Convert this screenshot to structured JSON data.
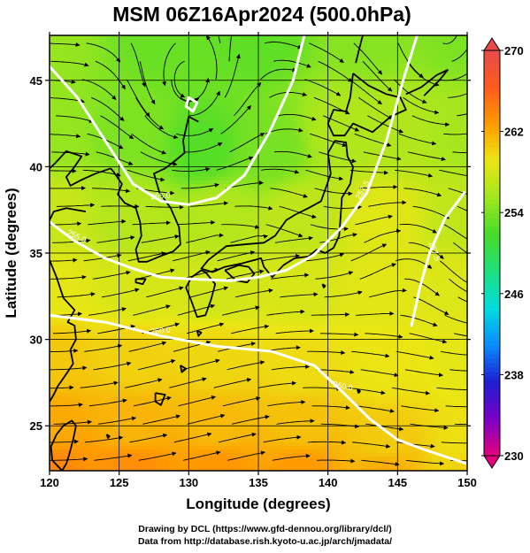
{
  "title": "MSM 06Z16Apr2024 (500.0hPa)",
  "xlabel": "Longitude (degrees)",
  "ylabel": "Latitude  (degrees)",
  "credits": {
    "line1": "Drawing by DCL (https://www.gfd-dennou.org/library/dcl/)",
    "line2": "Data from http://database.rish.kyoto-u.ac.jp/arch/jmadata/"
  },
  "chart_data": {
    "type": "heatmap",
    "variable": "temperature (K) with wind streamlines",
    "xlim": [
      120,
      150
    ],
    "ylim": [
      22.4,
      47.6
    ],
    "x_ticks": [
      "120",
      "125",
      "130",
      "135",
      "140",
      "145",
      "150"
    ],
    "y_ticks": [
      "25",
      "30",
      "35",
      "40",
      "45"
    ],
    "grid": true,
    "colorbar": {
      "range": [
        230,
        270
      ],
      "tick_labels": [
        "270",
        "262",
        "254",
        "246",
        "238",
        "230"
      ],
      "colors": [
        "#e6007e",
        "#7a00c8",
        "#1e1ed2",
        "#0a8cff",
        "#00dcdc",
        "#1ee17d",
        "#46dc28",
        "#a0e61e",
        "#ebe614",
        "#ff9b00",
        "#ff5a1e",
        "#e64b4b"
      ]
    },
    "contour_labels": [
      "255.0",
      "255.0",
      "257.5",
      "257.5",
      "260.0",
      "260.0"
    ],
    "contours": [
      {
        "value": 255.0,
        "points": [
          [
            120.0,
            45.8
          ],
          [
            122.0,
            44.0
          ],
          [
            124.0,
            41.5
          ],
          [
            126.0,
            39.0
          ],
          [
            128.0,
            38.0
          ],
          [
            130.0,
            37.8
          ],
          [
            132.0,
            38.2
          ],
          [
            134.0,
            39.5
          ],
          [
            135.8,
            42.0
          ],
          [
            137.5,
            45.0
          ],
          [
            138.3,
            47.6
          ]
        ]
      },
      {
        "value": 255.0,
        "points": [
          [
            130.0,
            44.0
          ],
          [
            129.8,
            43.5
          ],
          [
            130.3,
            43.2
          ],
          [
            130.6,
            43.7
          ],
          [
            130.0,
            44.0
          ]
        ]
      },
      {
        "value": 257.5,
        "points": [
          [
            120.0,
            36.8
          ],
          [
            121.8,
            35.7
          ],
          [
            124.0,
            34.7
          ],
          [
            126.0,
            34.1
          ],
          [
            128.0,
            33.6
          ],
          [
            130.0,
            33.5
          ],
          [
            133.0,
            33.4
          ],
          [
            135.0,
            33.6
          ],
          [
            137.0,
            34.0
          ],
          [
            139.0,
            34.9
          ],
          [
            141.0,
            36.5
          ],
          [
            142.8,
            38.5
          ],
          [
            144.2,
            41.5
          ],
          [
            145.4,
            45.0
          ],
          [
            146.4,
            47.6
          ]
        ]
      },
      {
        "value": 257.5,
        "points": [
          [
            149.8,
            38.5
          ],
          [
            148.4,
            37.0
          ],
          [
            147.3,
            35.0
          ],
          [
            146.6,
            33.0
          ],
          [
            146.0,
            30.8
          ]
        ]
      },
      {
        "value": 260.0,
        "points": [
          [
            120.0,
            31.4
          ],
          [
            124.0,
            31.0
          ],
          [
            128.0,
            30.2
          ],
          [
            132.0,
            29.6
          ],
          [
            136.0,
            29.3
          ],
          [
            139.0,
            28.5
          ],
          [
            141.0,
            27.0
          ],
          [
            143.0,
            25.4
          ],
          [
            145.0,
            24.2
          ],
          [
            147.0,
            23.6
          ],
          [
            150.0,
            22.8
          ]
        ]
      }
    ],
    "temperature_nodes": [
      {
        "x": 120,
        "y": 47.6,
        "v": 255.0
      },
      {
        "x": 128,
        "y": 47.6,
        "v": 253.2
      },
      {
        "x": 135,
        "y": 47.6,
        "v": 252.8
      },
      {
        "x": 143,
        "y": 47.6,
        "v": 254.4
      },
      {
        "x": 150,
        "y": 47.6,
        "v": 254.0
      },
      {
        "x": 120,
        "y": 42.0,
        "v": 255.0
      },
      {
        "x": 126,
        "y": 42.0,
        "v": 254.0
      },
      {
        "x": 131,
        "y": 41.0,
        "v": 252.4
      },
      {
        "x": 136,
        "y": 41.0,
        "v": 253.8
      },
      {
        "x": 141,
        "y": 42.0,
        "v": 256.2
      },
      {
        "x": 145,
        "y": 42.0,
        "v": 256.3
      },
      {
        "x": 150,
        "y": 42.0,
        "v": 255.8
      },
      {
        "x": 120,
        "y": 37.0,
        "v": 257.4
      },
      {
        "x": 126,
        "y": 37.0,
        "v": 256.4
      },
      {
        "x": 132,
        "y": 37.0,
        "v": 256.4
      },
      {
        "x": 138,
        "y": 37.0,
        "v": 256.9
      },
      {
        "x": 144,
        "y": 37.0,
        "v": 258.6
      },
      {
        "x": 150,
        "y": 37.0,
        "v": 257.0
      },
      {
        "x": 120,
        "y": 33.0,
        "v": 258.8
      },
      {
        "x": 126,
        "y": 33.0,
        "v": 258.1
      },
      {
        "x": 132,
        "y": 33.0,
        "v": 257.8
      },
      {
        "x": 138,
        "y": 33.0,
        "v": 258.1
      },
      {
        "x": 144,
        "y": 33.0,
        "v": 258.6
      },
      {
        "x": 150,
        "y": 33.0,
        "v": 258.4
      },
      {
        "x": 120,
        "y": 29.0,
        "v": 260.6
      },
      {
        "x": 126,
        "y": 29.0,
        "v": 260.1
      },
      {
        "x": 132,
        "y": 29.0,
        "v": 259.8
      },
      {
        "x": 138,
        "y": 28.5,
        "v": 259.6
      },
      {
        "x": 144,
        "y": 28.5,
        "v": 259.2
      },
      {
        "x": 150,
        "y": 28.5,
        "v": 258.8
      },
      {
        "x": 120,
        "y": 25.0,
        "v": 262.0
      },
      {
        "x": 126,
        "y": 25.0,
        "v": 261.5
      },
      {
        "x": 132,
        "y": 25.0,
        "v": 261.2
      },
      {
        "x": 138,
        "y": 25.0,
        "v": 260.9
      },
      {
        "x": 144,
        "y": 24.0,
        "v": 260.4
      },
      {
        "x": 150,
        "y": 24.0,
        "v": 259.4
      },
      {
        "x": 120,
        "y": 22.4,
        "v": 263.8
      },
      {
        "x": 126,
        "y": 22.4,
        "v": 263.4
      },
      {
        "x": 132,
        "y": 22.4,
        "v": 263.0
      },
      {
        "x": 138,
        "y": 22.4,
        "v": 262.8
      },
      {
        "x": 144,
        "y": 22.4,
        "v": 261.8
      },
      {
        "x": 150,
        "y": 22.4,
        "v": 260.0
      }
    ],
    "circulation": [
      {
        "x": 130.0,
        "y": 43.5,
        "strength": 2.2
      },
      {
        "x": 148.3,
        "y": 46.0,
        "strength": 1.6
      },
      {
        "x": 146.2,
        "y": 36.0,
        "strength": -1.0
      }
    ],
    "coastlines": [
      [
        [
          141.8,
          45.4
        ],
        [
          141.6,
          44.0
        ],
        [
          141.3,
          43.2
        ],
        [
          140.4,
          43.3
        ],
        [
          140.0,
          42.5
        ],
        [
          140.4,
          41.8
        ],
        [
          141.2,
          41.8
        ],
        [
          141.8,
          42.5
        ],
        [
          143.2,
          42.0
        ],
        [
          144.5,
          42.9
        ],
        [
          145.6,
          43.3
        ],
        [
          145.2,
          44.0
        ],
        [
          144.2,
          44.2
        ],
        [
          142.9,
          44.7
        ],
        [
          141.8,
          45.4
        ]
      ],
      [
        [
          140.0,
          40.8
        ],
        [
          140.2,
          39.6
        ],
        [
          139.9,
          38.9
        ],
        [
          139.5,
          38.0
        ],
        [
          138.6,
          37.6
        ],
        [
          137.6,
          37.2
        ],
        [
          137.0,
          36.9
        ],
        [
          136.2,
          36.0
        ],
        [
          135.4,
          35.6
        ],
        [
          134.0,
          35.5
        ],
        [
          132.7,
          35.4
        ],
        [
          131.4,
          34.6
        ],
        [
          130.9,
          34.1
        ],
        [
          131.7,
          33.9
        ],
        [
          132.6,
          34.2
        ],
        [
          133.8,
          34.4
        ],
        [
          135.2,
          34.7
        ],
        [
          135.4,
          34.2
        ],
        [
          136.0,
          33.6
        ],
        [
          136.8,
          34.3
        ],
        [
          137.6,
          34.7
        ],
        [
          138.6,
          34.8
        ],
        [
          139.2,
          35.2
        ],
        [
          139.8,
          35.0
        ],
        [
          140.4,
          35.3
        ],
        [
          140.8,
          36.0
        ],
        [
          140.9,
          37.0
        ],
        [
          141.0,
          38.2
        ],
        [
          141.6,
          39.0
        ],
        [
          141.8,
          40.0
        ],
        [
          141.4,
          40.6
        ],
        [
          141.3,
          41.4
        ],
        [
          140.5,
          41.5
        ],
        [
          140.0,
          40.8
        ]
      ],
      [
        [
          130.9,
          34.0
        ],
        [
          130.2,
          33.6
        ],
        [
          129.8,
          33.0
        ],
        [
          130.2,
          32.2
        ],
        [
          130.6,
          31.3
        ],
        [
          131.2,
          31.4
        ],
        [
          131.6,
          32.3
        ],
        [
          131.9,
          33.2
        ],
        [
          131.2,
          33.9
        ],
        [
          130.9,
          34.0
        ]
      ],
      [
        [
          132.6,
          34.0
        ],
        [
          133.4,
          33.4
        ],
        [
          134.2,
          33.3
        ],
        [
          134.7,
          33.8
        ],
        [
          134.3,
          34.2
        ],
        [
          133.6,
          34.3
        ],
        [
          132.6,
          34.0
        ]
      ],
      [
        [
          130.7,
          42.6
        ],
        [
          130.0,
          42.9
        ],
        [
          129.6,
          41.5
        ],
        [
          129.7,
          40.8
        ],
        [
          129.1,
          40.4
        ],
        [
          128.3,
          39.9
        ],
        [
          127.5,
          39.6
        ],
        [
          127.9,
          38.5
        ],
        [
          128.7,
          37.6
        ],
        [
          129.3,
          36.5
        ],
        [
          129.4,
          35.5
        ],
        [
          128.9,
          35.1
        ],
        [
          127.9,
          34.8
        ],
        [
          127.0,
          34.5
        ],
        [
          126.4,
          34.5
        ],
        [
          126.2,
          35.2
        ],
        [
          126.6,
          36.0
        ],
        [
          126.5,
          36.8
        ],
        [
          126.2,
          37.6
        ],
        [
          125.4,
          37.9
        ],
        [
          124.9,
          38.4
        ],
        [
          125.2,
          39.0
        ],
        [
          124.6,
          39.7
        ],
        [
          124.4,
          39.9
        ]
      ],
      [
        [
          124.4,
          39.9
        ],
        [
          123.3,
          39.6
        ],
        [
          122.2,
          39.2
        ],
        [
          121.5,
          38.9
        ],
        [
          121.2,
          39.4
        ],
        [
          121.8,
          40.0
        ],
        [
          122.3,
          40.6
        ],
        [
          121.2,
          40.9
        ],
        [
          120.4,
          40.2
        ],
        [
          120.0,
          39.9
        ]
      ],
      [
        [
          122.6,
          37.4
        ],
        [
          121.2,
          37.6
        ],
        [
          120.3,
          37.4
        ],
        [
          120.0,
          36.9
        ]
      ],
      [
        [
          120.0,
          34.6
        ],
        [
          120.5,
          33.6
        ],
        [
          121.0,
          32.4
        ],
        [
          121.8,
          31.7
        ],
        [
          121.3,
          31.0
        ],
        [
          121.8,
          30.8
        ],
        [
          121.9,
          30.0
        ],
        [
          121.5,
          29.4
        ],
        [
          121.7,
          28.6
        ],
        [
          121.2,
          28.0
        ],
        [
          120.6,
          27.3
        ],
        [
          120.3,
          26.8
        ],
        [
          120.0,
          26.4
        ]
      ],
      [
        [
          120.2,
          23.0
        ],
        [
          120.1,
          23.8
        ],
        [
          120.5,
          24.5
        ],
        [
          121.0,
          25.0
        ],
        [
          121.6,
          25.3
        ],
        [
          121.9,
          25.0
        ],
        [
          121.7,
          24.2
        ],
        [
          121.4,
          23.3
        ],
        [
          121.2,
          22.8
        ],
        [
          120.9,
          22.4
        ],
        [
          120.2,
          23.0
        ]
      ],
      [
        [
          126.2,
          33.5
        ],
        [
          126.9,
          33.5
        ],
        [
          126.7,
          33.2
        ],
        [
          126.2,
          33.3
        ],
        [
          126.2,
          33.5
        ]
      ],
      [
        [
          127.6,
          26.9
        ],
        [
          128.3,
          26.8
        ],
        [
          128.0,
          26.2
        ],
        [
          127.6,
          26.4
        ],
        [
          127.6,
          26.9
        ]
      ],
      [
        [
          129.4,
          28.5
        ],
        [
          129.8,
          28.3
        ],
        [
          129.5,
          28.1
        ],
        [
          129.4,
          28.5
        ]
      ],
      [
        [
          130.6,
          30.5
        ],
        [
          130.9,
          30.4
        ],
        [
          130.7,
          30.2
        ],
        [
          130.6,
          30.5
        ]
      ],
      [
        [
          139.6,
          33.2
        ],
        [
          139.8,
          33.1
        ],
        [
          139.7,
          33.0
        ],
        [
          139.6,
          33.2
        ]
      ],
      [
        [
          142.1,
          27.1
        ],
        [
          142.3,
          27.0
        ],
        [
          142.2,
          26.9
        ],
        [
          142.1,
          27.1
        ]
      ],
      [
        [
          124.1,
          24.5
        ],
        [
          124.3,
          24.4
        ],
        [
          124.2,
          24.3
        ],
        [
          124.1,
          24.5
        ]
      ],
      [
        [
          145.6,
          44.2
        ],
        [
          146.7,
          44.6
        ],
        [
          147.8,
          45.3
        ],
        [
          148.6,
          45.6
        ],
        [
          148.0,
          45.0
        ],
        [
          146.9,
          44.1
        ]
      ],
      [
        [
          142.0,
          46.0
        ],
        [
          142.3,
          47.0
        ],
        [
          142.5,
          47.6
        ]
      ]
    ]
  }
}
